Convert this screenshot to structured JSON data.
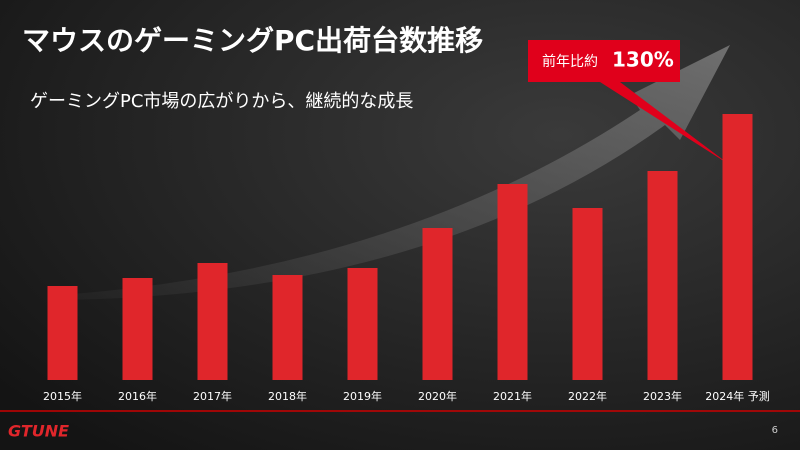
{
  "chart_data": {
    "type": "bar",
    "title": "マウスのゲーミングPC出荷台数推移",
    "subtitle": "ゲーミングPC市場の広がりから、継続的な成長",
    "annotation": {
      "label": "前年比約",
      "value": "130%"
    },
    "categories": [
      "2015年",
      "2016年",
      "2017年",
      "2018年",
      "2019年",
      "2020年",
      "2021年",
      "2022年",
      "2023年",
      "2024年 予測"
    ],
    "values": [
      94,
      102,
      117,
      105,
      112,
      152,
      196,
      172,
      209,
      266
    ],
    "color": "#e0262b"
  },
  "footer": {
    "logo": "GTUNE",
    "page": "6"
  }
}
